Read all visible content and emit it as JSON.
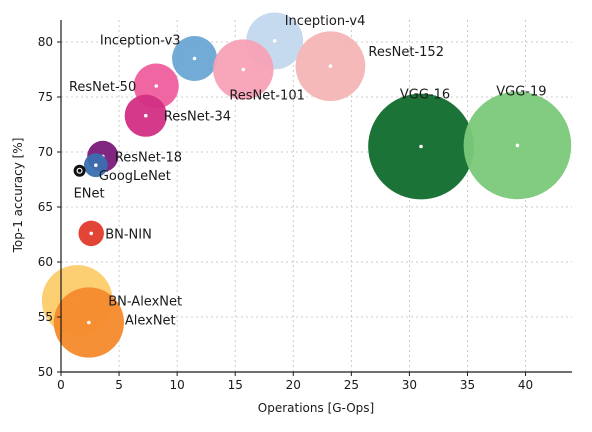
{
  "chart_data": {
    "type": "scatter",
    "title": "",
    "xlabel": "Operations [G-Ops]",
    "ylabel": "Top-1 accuracy [%]",
    "xlim": [
      0,
      44
    ],
    "ylim": [
      50,
      82
    ],
    "xticks": [
      0,
      5,
      10,
      15,
      20,
      25,
      30,
      35,
      40
    ],
    "yticks": [
      50,
      55,
      60,
      65,
      70,
      75,
      80
    ],
    "grid": true,
    "size_encoding": "bubble area proportional to number of parameters",
    "points": [
      {
        "label": "Inception-v4",
        "x": 18.4,
        "y": 80.1,
        "size": 40,
        "color": "#c3d8ee"
      },
      {
        "label": "Inception-v3",
        "x": 11.5,
        "y": 78.5,
        "size": 25,
        "color": "#6aa7d4"
      },
      {
        "label": "ResNet-152",
        "x": 23.2,
        "y": 77.8,
        "size": 60,
        "color": "#f6b5b5"
      },
      {
        "label": "ResNet-101",
        "x": 15.7,
        "y": 77.5,
        "size": 45,
        "color": "#f7a2b5"
      },
      {
        "label": "ResNet-50",
        "x": 8.2,
        "y": 76.0,
        "size": 25,
        "color": "#ef5e9e"
      },
      {
        "label": "ResNet-34",
        "x": 7.3,
        "y": 73.3,
        "size": 22,
        "color": "#d22f83"
      },
      {
        "label": "VGG-16",
        "x": 31.0,
        "y": 70.5,
        "size": 138,
        "color": "#0f6b2c"
      },
      {
        "label": "VGG-19",
        "x": 39.3,
        "y": 70.6,
        "size": 143,
        "color": "#7bc97a"
      },
      {
        "label": "ResNet-18",
        "x": 3.6,
        "y": 69.6,
        "size": 12,
        "color": "#7a1a7a"
      },
      {
        "label": "GoogLeNet",
        "x": 3.0,
        "y": 68.8,
        "size": 7,
        "color": "#3a6fb0"
      },
      {
        "label": "ENet",
        "x": 1.6,
        "y": 68.3,
        "size": 1,
        "color": "#111111"
      },
      {
        "label": "BN-NIN",
        "x": 2.6,
        "y": 62.6,
        "size": 8,
        "color": "#e03a2a"
      },
      {
        "label": "BN-AlexNet",
        "x": 1.4,
        "y": 56.5,
        "size": 62,
        "color": "#fcc75a"
      },
      {
        "label": "AlexNet",
        "x": 2.4,
        "y": 54.5,
        "size": 61,
        "color": "#f48a2c"
      }
    ]
  }
}
